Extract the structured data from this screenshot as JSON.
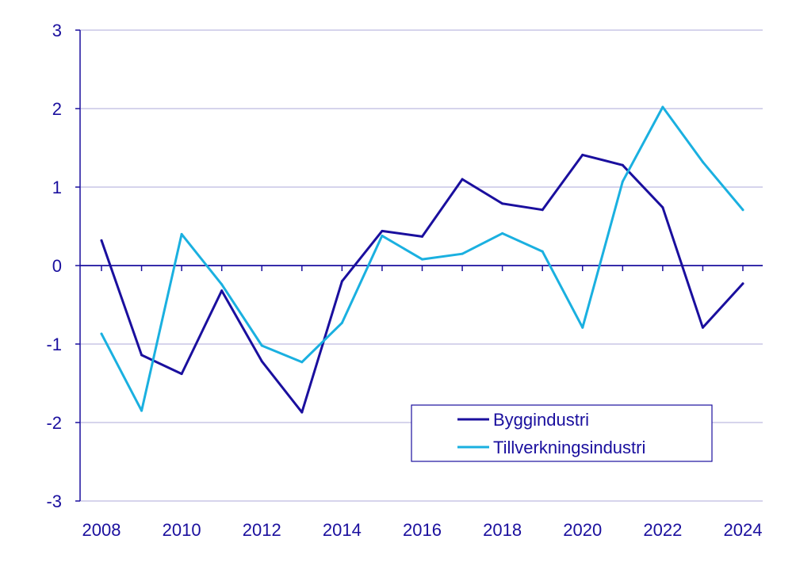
{
  "chart_data": {
    "type": "line",
    "title": "",
    "xlabel": "",
    "ylabel": "",
    "x": [
      2008,
      2009,
      2010,
      2011,
      2012,
      2013,
      2014,
      2015,
      2016,
      2017,
      2018,
      2019,
      2020,
      2021,
      2022,
      2023,
      2024
    ],
    "x_tick_labels": [
      "2008",
      "2010",
      "2012",
      "2014",
      "2016",
      "2018",
      "2020",
      "2022",
      "2024"
    ],
    "ylim": [
      -3,
      3
    ],
    "y_tick_labels": [
      "3",
      "2",
      "1",
      "0",
      "-1",
      "-2",
      "-3"
    ],
    "grid": true,
    "legend_position": "lower-right",
    "series": [
      {
        "name": "Byggindustri",
        "color": "#1a0f9e",
        "values": [
          0.32,
          -1.14,
          -1.38,
          -0.32,
          -1.22,
          -1.87,
          -0.2,
          0.44,
          0.37,
          1.1,
          0.79,
          0.71,
          1.41,
          1.28,
          0.74,
          -0.79,
          -0.23
        ]
      },
      {
        "name": "Tillverkningsindustri",
        "color": "#1ab0e0",
        "values": [
          -0.87,
          -1.85,
          0.4,
          -0.24,
          -1.02,
          -1.23,
          -0.73,
          0.38,
          0.08,
          0.15,
          0.41,
          0.18,
          -0.79,
          1.07,
          2.02,
          1.32,
          0.71
        ]
      }
    ],
    "colors": {
      "text": "#1a0f9e",
      "axis": "#1a0f9e",
      "grid": "#c9c6e6",
      "legend_border": "#1a0f9e"
    }
  }
}
